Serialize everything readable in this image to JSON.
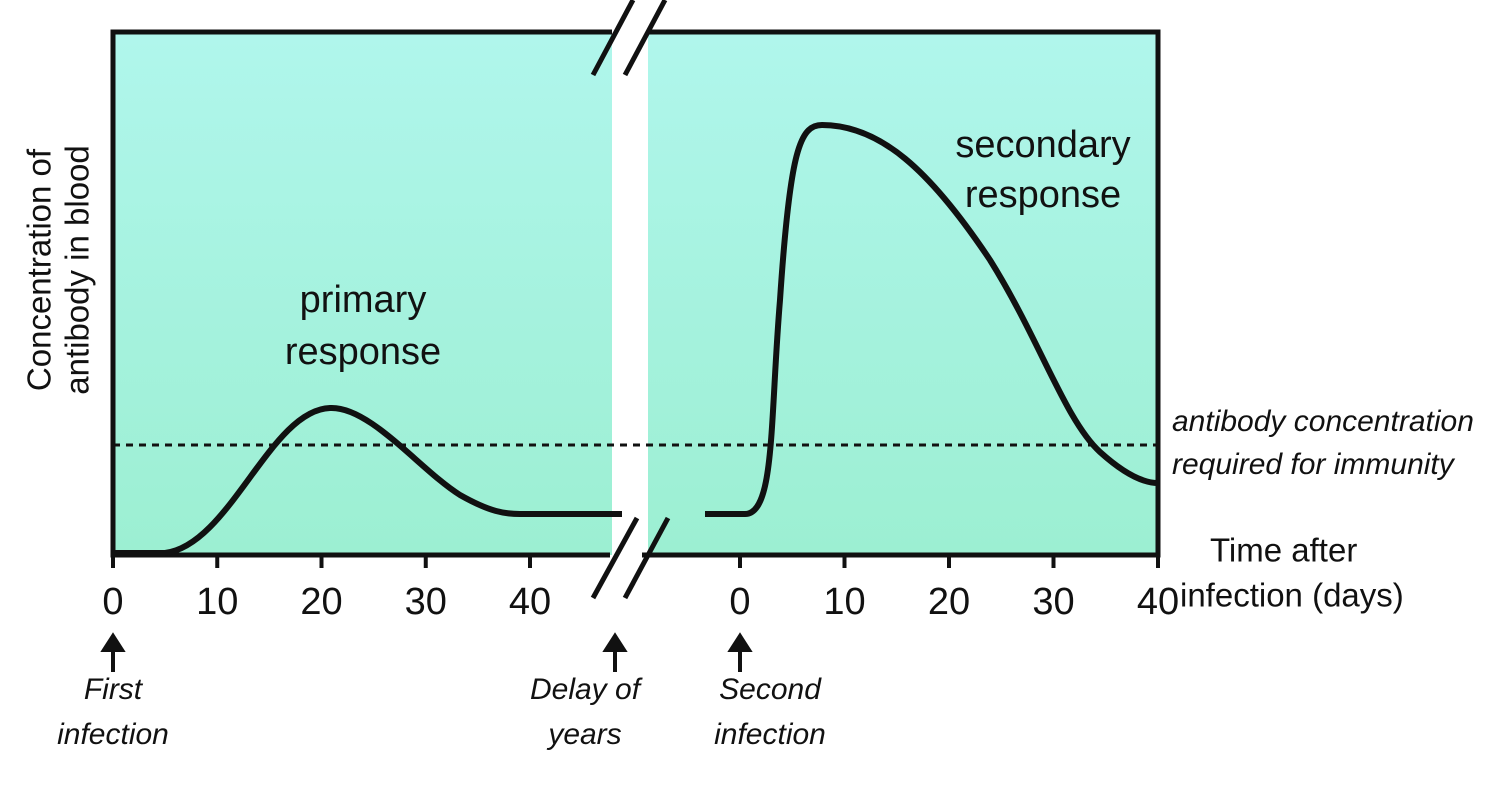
{
  "y_axis_label": [
    "Concentration of",
    "antibody in blood"
  ],
  "x_axis_label": [
    "Time after",
    "infection (days)"
  ],
  "primary_ticks": [
    0,
    10,
    20,
    30,
    40
  ],
  "secondary_ticks": [
    0,
    10,
    20,
    30,
    40
  ],
  "curve_labels": {
    "primary": [
      "primary",
      "response"
    ],
    "secondary": [
      "secondary",
      "response"
    ]
  },
  "threshold_label": [
    "antibody concentration",
    "required for immunity"
  ],
  "markers": [
    {
      "label": [
        "First",
        "infection"
      ]
    },
    {
      "label": [
        "Delay of",
        "years"
      ]
    },
    {
      "label": [
        "Second",
        "infection"
      ]
    }
  ]
}
